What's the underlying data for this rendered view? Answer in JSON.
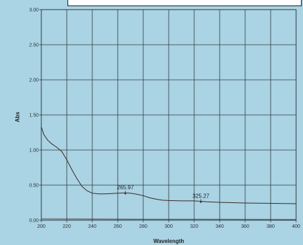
{
  "chart_data": {
    "type": "line",
    "title": "",
    "xlabel": "Wavelength",
    "ylabel": "Abs",
    "xlim": [
      200,
      400
    ],
    "ylim": [
      0,
      3.0
    ],
    "x_ticks": [
      "200",
      "220",
      "240",
      "260",
      "280",
      "300",
      "320",
      "340",
      "360",
      "380",
      "400"
    ],
    "y_ticks": [
      "0.00",
      "0.50",
      "1.00",
      "1.50",
      "2.00",
      "2.50",
      "3.00"
    ],
    "grid": true,
    "series": [
      {
        "points": [
          [
            200,
            1.33
          ],
          [
            202,
            1.22
          ],
          [
            205,
            1.14
          ],
          [
            208,
            1.09
          ],
          [
            212,
            1.04
          ],
          [
            216,
            0.98
          ],
          [
            220,
            0.86
          ],
          [
            224,
            0.72
          ],
          [
            228,
            0.59
          ],
          [
            232,
            0.48
          ],
          [
            236,
            0.42
          ],
          [
            240,
            0.385
          ],
          [
            245,
            0.375
          ],
          [
            250,
            0.375
          ],
          [
            255,
            0.38
          ],
          [
            260,
            0.385
          ],
          [
            265.97,
            0.39
          ],
          [
            270,
            0.385
          ],
          [
            275,
            0.37
          ],
          [
            280,
            0.35
          ],
          [
            285,
            0.32
          ],
          [
            290,
            0.3
          ],
          [
            295,
            0.285
          ],
          [
            300,
            0.28
          ],
          [
            310,
            0.275
          ],
          [
            320,
            0.275
          ],
          [
            325.27,
            0.27
          ],
          [
            330,
            0.262
          ],
          [
            340,
            0.255
          ],
          [
            350,
            0.25
          ],
          [
            360,
            0.245
          ],
          [
            370,
            0.243
          ],
          [
            380,
            0.24
          ],
          [
            390,
            0.238
          ],
          [
            400,
            0.235
          ]
        ]
      },
      {
        "points": [
          [
            200,
            0.02
          ],
          [
            300,
            0.015
          ],
          [
            400,
            0.01
          ]
        ]
      }
    ],
    "annotations": [
      {
        "text": "265.97",
        "x": 265.97,
        "y": 0.39
      },
      {
        "text": "325.27",
        "x": 325.27,
        "y": 0.27
      }
    ]
  },
  "colors": {
    "background": "#aad3e3",
    "grid": "#2e3a40",
    "curve": "#3a2a22",
    "text": "#1f2326"
  }
}
